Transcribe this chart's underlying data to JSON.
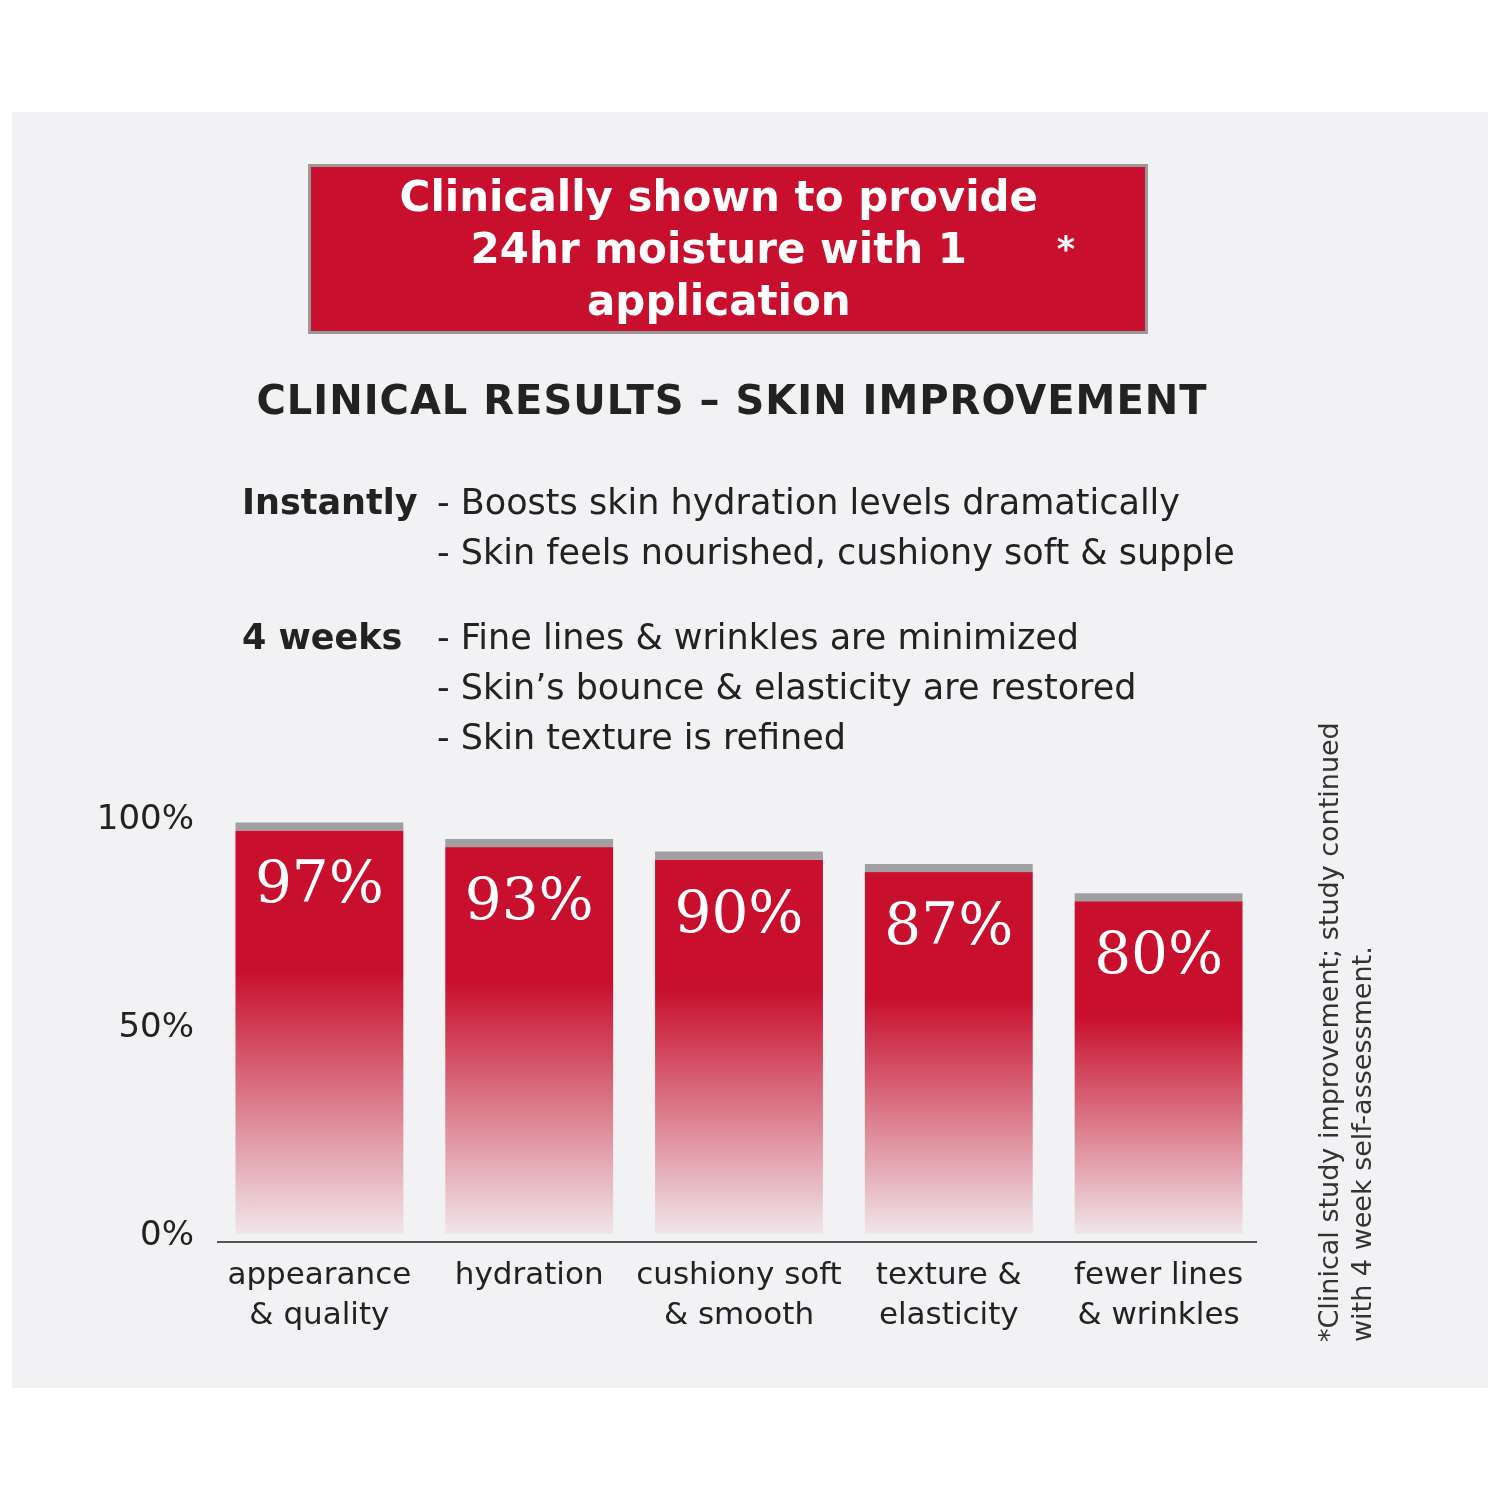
{
  "chart_data": {
    "type": "bar",
    "title": "CLINICAL RESULTS – SKIN IMPROVEMENT",
    "categories": [
      "appearance & quality",
      "hydration",
      "cushiony soft & smooth",
      "texture & elasticity",
      "fewer lines & wrinkles"
    ],
    "values": [
      97,
      93,
      90,
      87,
      80
    ],
    "value_labels": [
      "97%",
      "93%",
      "90%",
      "87%",
      "80%"
    ],
    "color": "#c8102e",
    "ylim": [
      0,
      100
    ],
    "yticks": [
      {
        "value": 0,
        "label": "0%"
      },
      {
        "value": 50,
        "label": "50%"
      },
      {
        "value": 100,
        "label": "100%"
      }
    ],
    "annotations": [
      "Clinically shown to provide 24hr moisture with 1 application$^{*}$",
      "Instantly",
      "- Boosts skin hydration levels dramatically",
      "- Skin feels nourished, cushiony soft & supple",
      "4 weeks",
      "- Fine lines & wrinkles are minimized",
      "- Skin’s bounce & elasticity are restored",
      "- Skin texture is refined",
      "*Clinical study improvement; study continued with 4 week self-assessment."
    ]
  }
}
